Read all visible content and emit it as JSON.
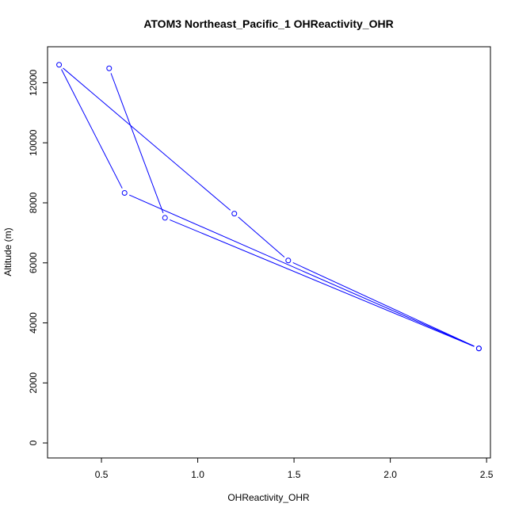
{
  "chart_data": {
    "type": "line",
    "title": "ATOM3 Northeast_Pacific_1 OHReactivity_OHR",
    "xlabel": "OHReactivity_OHR",
    "ylabel": "Altitude (m)",
    "xlim": [
      0.22,
      2.52
    ],
    "ylim": [
      -500,
      13200
    ],
    "x_ticks": [
      0.5,
      1.0,
      1.5,
      2.0,
      2.5
    ],
    "x_tick_labels": [
      "0.5",
      "1.0",
      "1.5",
      "2.0",
      "2.5"
    ],
    "y_ticks": [
      0,
      2000,
      4000,
      6000,
      8000,
      10000,
      12000
    ],
    "y_tick_labels": [
      "0",
      "2000",
      "4000",
      "6000",
      "8000",
      "10000",
      "12000"
    ],
    "grid": false,
    "series": [
      {
        "color": "#0000ff",
        "marker": "open-circle",
        "points": [
          {
            "x": 2.46,
            "y": 3150
          },
          {
            "x": 1.47,
            "y": 6080
          },
          {
            "x": 1.19,
            "y": 7640
          },
          {
            "x": 0.28,
            "y": 12600
          },
          {
            "x": 0.62,
            "y": 8330
          },
          {
            "x": 2.46,
            "y": 3150
          },
          {
            "x": 0.83,
            "y": 7500
          },
          {
            "x": 0.54,
            "y": 12480
          }
        ]
      }
    ]
  }
}
